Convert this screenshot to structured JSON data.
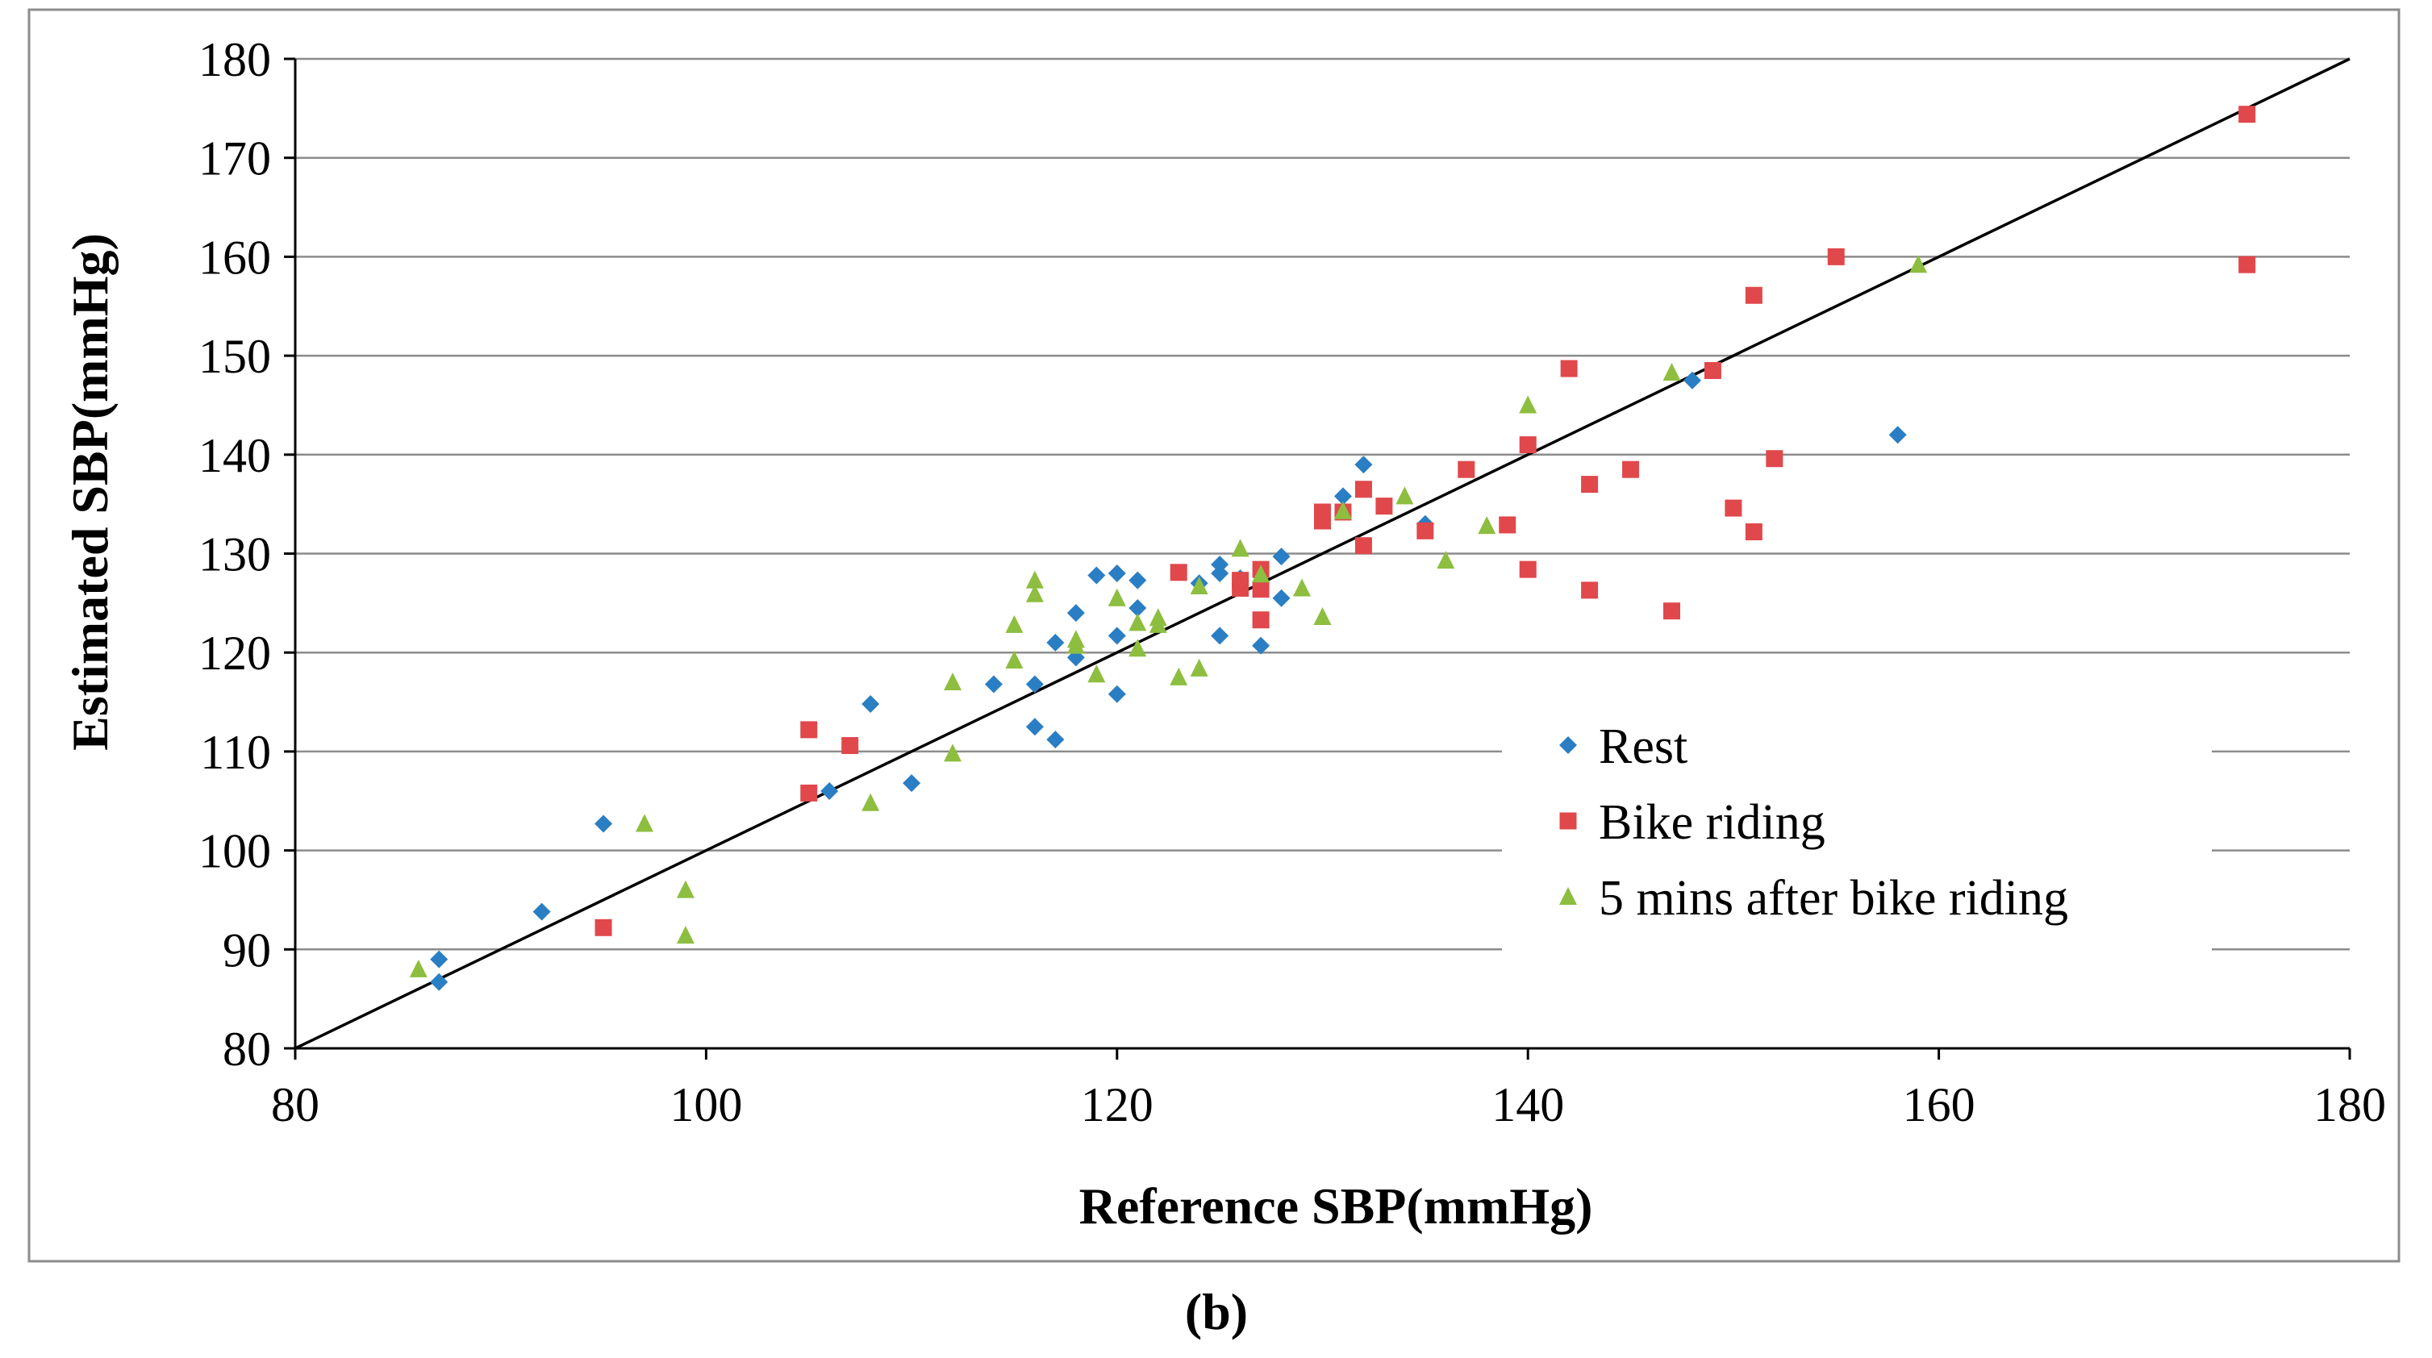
{
  "chart_data": {
    "type": "scatter",
    "xlabel": "Reference SBP(mmHg)",
    "ylabel": "Estimated SBP(mmHg)",
    "xlim": [
      80,
      180
    ],
    "ylim": [
      80,
      180
    ],
    "xticks": [
      80,
      100,
      120,
      140,
      160,
      180
    ],
    "yticks": [
      80,
      90,
      100,
      110,
      120,
      130,
      140,
      150,
      160,
      170,
      180
    ],
    "grid": "horizontal",
    "legend_position": "right",
    "reference_line": [
      [
        80,
        80
      ],
      [
        180,
        180
      ]
    ],
    "caption": "(b)",
    "series": [
      {
        "name": "Rest",
        "marker": "diamond",
        "color": "#2A7EC3",
        "points": [
          [
            87,
            89
          ],
          [
            87,
            86.7
          ],
          [
            92,
            93.8
          ],
          [
            95,
            102.7
          ],
          [
            106,
            106
          ],
          [
            108,
            114.8
          ],
          [
            110,
            106.8
          ],
          [
            114,
            116.8
          ],
          [
            116,
            116.8
          ],
          [
            116,
            112.5
          ],
          [
            117,
            111.2
          ],
          [
            117,
            121
          ],
          [
            118,
            119.5
          ],
          [
            118,
            124
          ],
          [
            119,
            127.8
          ],
          [
            120,
            128
          ],
          [
            120,
            121.7
          ],
          [
            120,
            115.8
          ],
          [
            121,
            127.3
          ],
          [
            121,
            124.5
          ],
          [
            124,
            127
          ],
          [
            125,
            128
          ],
          [
            125,
            128.9
          ],
          [
            125,
            121.7
          ],
          [
            126,
            127.5
          ],
          [
            127,
            120.7
          ],
          [
            128,
            129.7
          ],
          [
            128,
            125.5
          ],
          [
            131,
            135.8
          ],
          [
            132,
            139
          ],
          [
            135,
            133
          ],
          [
            148,
            147.5
          ],
          [
            158,
            142
          ]
        ]
      },
      {
        "name": "Bike riding",
        "marker": "square",
        "color": "#E0484B",
        "points": [
          [
            95,
            92.2
          ],
          [
            105,
            112.2
          ],
          [
            105,
            105.8
          ],
          [
            107,
            110.6
          ],
          [
            123,
            128.1
          ],
          [
            126,
            127.3
          ],
          [
            126,
            126.5
          ],
          [
            127,
            128.4
          ],
          [
            127,
            126.4
          ],
          [
            127,
            123.3
          ],
          [
            130,
            134.2
          ],
          [
            130,
            133.3
          ],
          [
            131,
            134.2
          ],
          [
            132,
            136.5
          ],
          [
            132,
            130.8
          ],
          [
            133,
            134.8
          ],
          [
            135,
            132.3
          ],
          [
            137,
            138.5
          ],
          [
            139,
            132.9
          ],
          [
            140,
            141
          ],
          [
            140,
            128.4
          ],
          [
            142,
            148.7
          ],
          [
            143,
            137
          ],
          [
            143,
            126.3
          ],
          [
            145,
            138.5
          ],
          [
            147,
            124.2
          ],
          [
            149,
            148.5
          ],
          [
            150,
            134.6
          ],
          [
            151,
            156.1
          ],
          [
            151,
            132.2
          ],
          [
            152,
            139.6
          ],
          [
            155,
            160
          ],
          [
            175,
            174.4
          ],
          [
            175,
            159.2
          ]
        ]
      },
      {
        "name": "5 mins after bike riding",
        "marker": "triangle",
        "color": "#8DBE3F",
        "points": [
          [
            86,
            88
          ],
          [
            97,
            102.7
          ],
          [
            99,
            96
          ],
          [
            99,
            91.4
          ],
          [
            108,
            104.8
          ],
          [
            112,
            117
          ],
          [
            112,
            109.8
          ],
          [
            115,
            122.8
          ],
          [
            115,
            119.2
          ],
          [
            116,
            127.3
          ],
          [
            116,
            125.9
          ],
          [
            118,
            121.3
          ],
          [
            118,
            120.7
          ],
          [
            119,
            117.8
          ],
          [
            120,
            125.5
          ],
          [
            121,
            123
          ],
          [
            121,
            120.4
          ],
          [
            122,
            123.5
          ],
          [
            122,
            122.8
          ],
          [
            123,
            117.5
          ],
          [
            124,
            126.7
          ],
          [
            124,
            118.4
          ],
          [
            126,
            130.5
          ],
          [
            127,
            127.9
          ],
          [
            129,
            126.5
          ],
          [
            130,
            123.6
          ],
          [
            131,
            134.3
          ],
          [
            134,
            135.8
          ],
          [
            136,
            129.3
          ],
          [
            138,
            132.8
          ],
          [
            140,
            145
          ],
          [
            147,
            148.3
          ],
          [
            159,
            159.2
          ]
        ]
      }
    ]
  }
}
